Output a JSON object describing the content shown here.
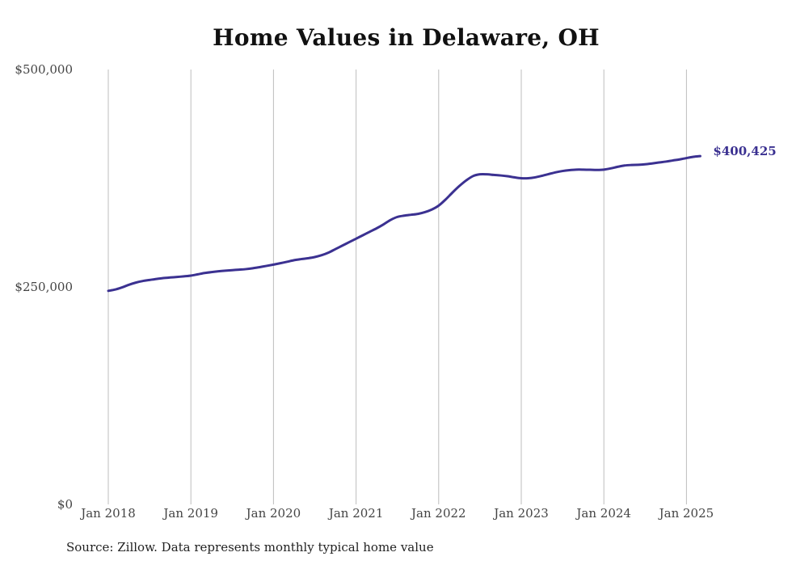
{
  "chart_data": {
    "type": "line",
    "title": "Home Values in Delaware, OH",
    "xlabel": "",
    "ylabel": "",
    "x_tick_labels": [
      "Jan 2018",
      "Jan 2019",
      "Jan 2020",
      "Jan 2021",
      "Jan 2022",
      "Jan 2023",
      "Jan 2024",
      "Jan 2025"
    ],
    "y_tick_labels": [
      "$0",
      "$250,000",
      "$500,000"
    ],
    "y_ticks": [
      0,
      250000,
      500000
    ],
    "ylim": [
      0,
      500000
    ],
    "x_range": [
      "2018-01",
      "2025-03"
    ],
    "grid": "vertical lines at each Jan",
    "legend": "none",
    "line_color": "#3b3191",
    "end_label": "$400,425",
    "series": [
      {
        "x": [
          "2018-01",
          "2018-02",
          "2018-03",
          "2018-04",
          "2018-05",
          "2018-06",
          "2018-07",
          "2018-08",
          "2018-09",
          "2018-10",
          "2018-11",
          "2018-12",
          "2019-01",
          "2019-02",
          "2019-03",
          "2019-04",
          "2019-05",
          "2019-06",
          "2019-07",
          "2019-08",
          "2019-09",
          "2019-10",
          "2019-11",
          "2019-12",
          "2020-01",
          "2020-02",
          "2020-03",
          "2020-04",
          "2020-05",
          "2020-06",
          "2020-07",
          "2020-08",
          "2020-09",
          "2020-10",
          "2020-11",
          "2020-12",
          "2021-01",
          "2021-02",
          "2021-03",
          "2021-04",
          "2021-05",
          "2021-06",
          "2021-07",
          "2021-08",
          "2021-09",
          "2021-10",
          "2021-11",
          "2021-12",
          "2022-01",
          "2022-02",
          "2022-03",
          "2022-04",
          "2022-05",
          "2022-06",
          "2022-07",
          "2022-08",
          "2022-09",
          "2022-10",
          "2022-11",
          "2022-12",
          "2023-01",
          "2023-02",
          "2023-03",
          "2023-04",
          "2023-05",
          "2023-06",
          "2023-07",
          "2023-08",
          "2023-09",
          "2023-10",
          "2023-11",
          "2023-12",
          "2024-01",
          "2024-02",
          "2024-03",
          "2024-04",
          "2024-05",
          "2024-06",
          "2024-07",
          "2024-08",
          "2024-09",
          "2024-10",
          "2024-11",
          "2024-12",
          "2025-01",
          "2025-02",
          "2025-03"
        ],
        "values": [
          245500,
          247000,
          249500,
          252500,
          255000,
          256800,
          258000,
          259200,
          260200,
          260900,
          261500,
          262200,
          263000,
          264500,
          266000,
          267100,
          268000,
          268700,
          269300,
          269900,
          270500,
          271500,
          272800,
          274200,
          275700,
          277300,
          279000,
          280800,
          282000,
          283000,
          284400,
          286500,
          289500,
          293500,
          297500,
          301500,
          305500,
          309500,
          313500,
          317500,
          322000,
          327000,
          330500,
          332000,
          333000,
          334000,
          336000,
          339000,
          343500,
          350500,
          358500,
          366000,
          372500,
          377500,
          379500,
          379500,
          378800,
          378200,
          377300,
          376000,
          375000,
          375000,
          376000,
          377800,
          379800,
          381800,
          383300,
          384300,
          384900,
          384900,
          384700,
          384500,
          384900,
          386300,
          388100,
          389600,
          390200,
          390400,
          391000,
          392000,
          393100,
          394100,
          395400,
          396600,
          398200,
          399600,
          400425
        ]
      }
    ]
  },
  "source_note": "Source: Zillow. Data represents monthly typical home value"
}
